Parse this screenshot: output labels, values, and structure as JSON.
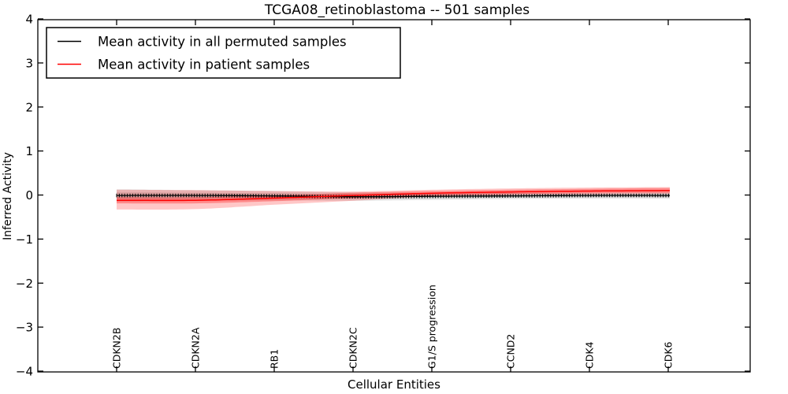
{
  "title": "TCGA08_retinoblastoma -- 501 samples",
  "axes": {
    "xlabel": "Cellular Entities",
    "ylabel": "Inferred Activity",
    "ytick_labels": [
      "4",
      "3",
      "2",
      "1",
      "0",
      "−1",
      "−2",
      "−3",
      "−4"
    ],
    "ytick_values": [
      4,
      3,
      2,
      1,
      0,
      -1,
      -2,
      -3,
      -4
    ]
  },
  "legend": {
    "items": [
      {
        "label": "Mean activity in all permuted samples",
        "color": "#000000"
      },
      {
        "label": "Mean activity in patient samples",
        "color": "#ff0000"
      }
    ]
  },
  "colors": {
    "permuted_line": "#000000",
    "patient_line": "#ff0000",
    "permuted_band": "rgba(0,0,0,0.11)",
    "patient_band": "rgba(255,0,0,0.22)",
    "patient_band_inner": "rgba(255,0,0,0.30)",
    "frame": "#000000",
    "background": "#ffffff"
  },
  "chart_data": {
    "type": "line",
    "title": "TCGA08_retinoblastoma -- 501 samples",
    "xlabel": "Cellular Entities",
    "ylabel": "Inferred Activity",
    "ylim": [
      -4,
      4
    ],
    "grid": false,
    "legend_position": "upper left",
    "categories": [
      "CDKN2B",
      "CDKN2A",
      "RB1",
      "CDKN2C",
      "G1/S progression",
      "CCND2",
      "CDK4",
      "CDK6"
    ],
    "series": [
      {
        "name": "Mean activity in all permuted samples",
        "color": "#000000",
        "marker": "plus",
        "values": [
          -0.01,
          -0.01,
          -0.02,
          -0.04,
          -0.03,
          -0.02,
          -0.01,
          -0.01
        ],
        "band_outer_upper": [
          0.13,
          0.11,
          0.09,
          0.06,
          0.05,
          0.05,
          0.05,
          0.06
        ],
        "band_outer_lower": [
          -0.15,
          -0.13,
          -0.12,
          -0.13,
          -0.11,
          -0.09,
          -0.08,
          -0.08
        ],
        "band_inner_upper": [
          0.06,
          0.05,
          0.04,
          0.02,
          0.01,
          0.02,
          0.02,
          0.03
        ],
        "band_inner_lower": [
          -0.08,
          -0.07,
          -0.07,
          -0.09,
          -0.07,
          -0.06,
          -0.05,
          -0.05
        ]
      },
      {
        "name": "Mean activity in patient samples",
        "color": "#ff0000",
        "marker": "none",
        "values": [
          -0.12,
          -0.12,
          -0.07,
          -0.01,
          0.04,
          0.07,
          0.09,
          0.1
        ],
        "band_outer_upper": [
          0.12,
          0.11,
          0.09,
          0.08,
          0.12,
          0.15,
          0.17,
          0.18
        ],
        "band_outer_lower": [
          -0.33,
          -0.32,
          -0.22,
          -0.13,
          -0.03,
          0.0,
          0.01,
          0.02
        ],
        "band_inner_upper": [
          -0.05,
          -0.05,
          -0.01,
          0.05,
          0.09,
          0.12,
          0.14,
          0.16
        ],
        "band_inner_lower": [
          -0.19,
          -0.19,
          -0.14,
          -0.07,
          -0.01,
          0.02,
          0.04,
          0.05
        ]
      }
    ]
  }
}
